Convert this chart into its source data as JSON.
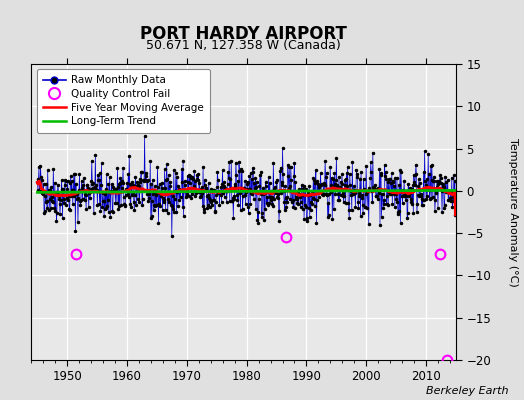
{
  "title": "PORT HARDY AIRPORT",
  "subtitle": "50.671 N, 127.358 W (Canada)",
  "ylabel": "Temperature Anomaly (°C)",
  "watermark": "Berkeley Earth",
  "year_start": 1945.0,
  "year_end": 2015.0,
  "xlim": [
    1944,
    2015
  ],
  "ylim": [
    -20,
    15
  ],
  "yticks": [
    -20,
    -15,
    -10,
    -5,
    0,
    5,
    10,
    15
  ],
  "xticks": [
    1950,
    1960,
    1970,
    1980,
    1990,
    2000,
    2010
  ],
  "bg_color": "#e0e0e0",
  "plot_bg_color": "#e8e8e8",
  "grid_color": "#ffffff",
  "raw_line_color": "#0000cc",
  "raw_dot_color": "#000000",
  "qc_fail_color": "#ff00ff",
  "moving_avg_color": "#ff0000",
  "trend_color": "#00bb00",
  "seed": 42,
  "n_months": 816,
  "qc_fail_points": [
    {
      "year": 1951.5,
      "value": -7.5
    },
    {
      "year": 1986.5,
      "value": -5.5
    },
    {
      "year": 2012.3,
      "value": -7.5
    },
    {
      "year": 2013.5,
      "value": -20.0
    }
  ],
  "noise_std": 1.6
}
